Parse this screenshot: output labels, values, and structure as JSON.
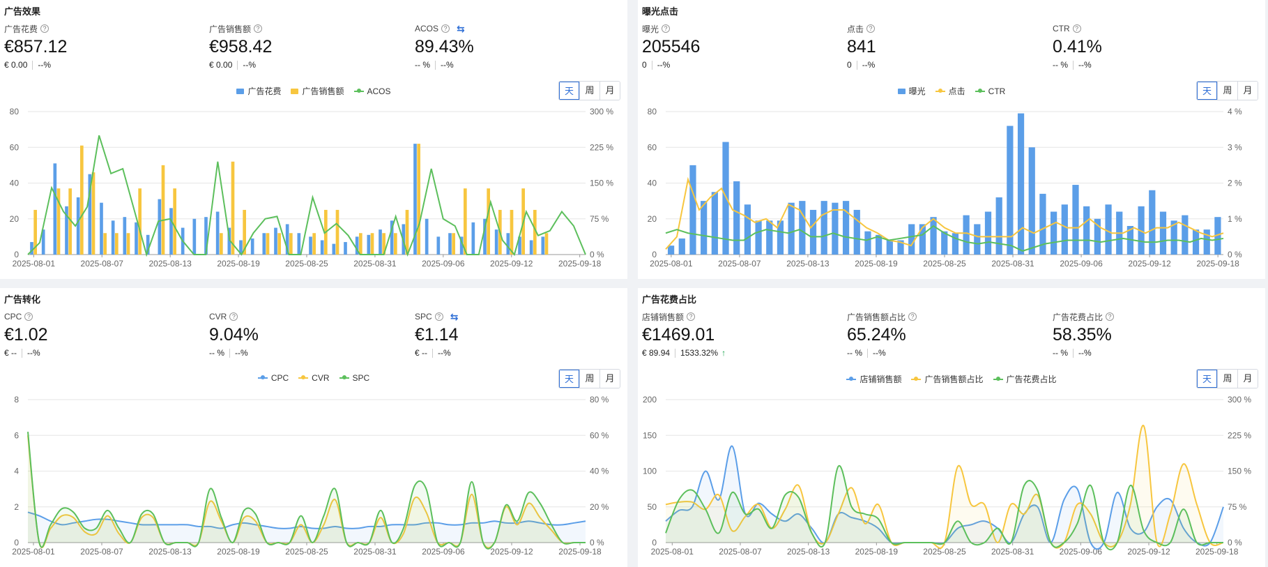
{
  "segment_labels": [
    "天",
    "周",
    "月"
  ],
  "panels": [
    {
      "title": "广告效果",
      "metrics": [
        {
          "label": "广告花费",
          "value": "€857.12",
          "sub1": "€ 0.00",
          "sub2": "--%",
          "help": true,
          "swap": false
        },
        {
          "label": "广告销售额",
          "value": "€958.42",
          "sub1": "€ 0.00",
          "sub2": "--%",
          "help": true,
          "swap": false
        },
        {
          "label": "ACOS",
          "value": "89.43%",
          "sub1": "-- %",
          "sub2": "--%",
          "help": true,
          "swap": true
        }
      ],
      "legend": [
        {
          "name": "广告花费",
          "kind": "bar",
          "color": "#5b9ee8"
        },
        {
          "name": "广告销售额",
          "kind": "bar",
          "color": "#f7c63f"
        },
        {
          "name": "ACOS",
          "kind": "line",
          "color": "#5cbf5c"
        }
      ]
    },
    {
      "title": "曝光点击",
      "metrics": [
        {
          "label": "曝光",
          "value": "205546",
          "sub1": "0",
          "sub2": "--%",
          "help": true,
          "swap": false
        },
        {
          "label": "点击",
          "value": "841",
          "sub1": "0",
          "sub2": "--%",
          "help": true,
          "swap": false
        },
        {
          "label": "CTR",
          "value": "0.41%",
          "sub1": "-- %",
          "sub2": "--%",
          "help": true,
          "swap": false
        }
      ],
      "legend": [
        {
          "name": "曝光",
          "kind": "bar",
          "color": "#5b9ee8"
        },
        {
          "name": "点击",
          "kind": "line",
          "color": "#f7c63f"
        },
        {
          "name": "CTR",
          "kind": "line",
          "color": "#5cbf5c"
        }
      ]
    },
    {
      "title": "广告转化",
      "metrics": [
        {
          "label": "CPC",
          "value": "€1.02",
          "sub1": "€ --",
          "sub2": "--%",
          "help": true,
          "swap": false
        },
        {
          "label": "CVR",
          "value": "9.04%",
          "sub1": "-- %",
          "sub2": "--%",
          "help": true,
          "swap": false
        },
        {
          "label": "SPC",
          "value": "€1.14",
          "sub1": "€ --",
          "sub2": "--%",
          "help": true,
          "swap": true
        }
      ],
      "legend": [
        {
          "name": "CPC",
          "kind": "line",
          "color": "#5b9ee8"
        },
        {
          "name": "CVR",
          "kind": "line",
          "color": "#f7c63f"
        },
        {
          "name": "SPC",
          "kind": "line",
          "color": "#5cbf5c"
        }
      ]
    },
    {
      "title": "广告花费占比",
      "metrics": [
        {
          "label": "店铺销售额",
          "value": "€1469.01",
          "sub1": "€ 89.94",
          "sub2": "1533.32%",
          "help": true,
          "swap": false,
          "up": true
        },
        {
          "label": "广告销售额占比",
          "value": "65.24%",
          "sub1": "-- %",
          "sub2": "--%",
          "help": true,
          "swap": false
        },
        {
          "label": "广告花费占比",
          "value": "58.35%",
          "sub1": "-- %",
          "sub2": "--%",
          "help": true,
          "swap": false
        }
      ],
      "legend": [
        {
          "name": "店铺销售额",
          "kind": "line",
          "color": "#5b9ee8"
        },
        {
          "name": "广告销售额占比",
          "kind": "line",
          "color": "#f7c63f"
        },
        {
          "name": "广告花费占比",
          "kind": "line",
          "color": "#5cbf5c"
        }
      ]
    }
  ],
  "chart_data": [
    {
      "type": "bar",
      "x_ticks": [
        "2025-08-01",
        "2025-08-07",
        "2025-08-13",
        "2025-08-19",
        "2025-08-25",
        "2025-08-31",
        "2025-09-06",
        "2025-09-12",
        "2025-09-18"
      ],
      "y_left_ticks": [
        "0",
        "20",
        "40",
        "60",
        "80"
      ],
      "y_right_ticks": [
        "0 %",
        "75 %",
        "150 %",
        "225 %",
        "300 %"
      ],
      "ylim_left": [
        0,
        80
      ],
      "ylim_right": [
        0,
        300
      ],
      "series": [
        {
          "name": "广告花费",
          "kind": "bar",
          "axis": "left",
          "values": [
            7,
            14,
            51,
            27,
            32,
            45,
            29,
            19,
            21,
            18,
            11,
            31,
            26,
            15,
            20,
            21,
            24,
            15,
            8,
            9,
            12,
            15,
            17,
            12,
            10,
            8,
            6,
            7,
            10,
            11,
            14,
            19,
            17,
            62,
            20,
            10,
            12,
            10,
            18,
            20,
            14,
            12,
            10,
            8,
            10
          ]
        },
        {
          "name": "广告销售额",
          "kind": "bar",
          "axis": "left",
          "values": [
            25,
            0,
            37,
            37,
            61,
            46,
            12,
            12,
            12,
            37,
            0,
            50,
            37,
            0,
            0,
            0,
            12,
            52,
            25,
            0,
            12,
            12,
            12,
            0,
            12,
            25,
            25,
            0,
            12,
            12,
            12,
            12,
            25,
            62,
            0,
            0,
            12,
            37,
            0,
            37,
            25,
            25,
            37,
            25,
            12
          ]
        },
        {
          "name": "ACOS",
          "kind": "line",
          "axis": "right",
          "values": [
            0,
            25,
            140,
            90,
            60,
            100,
            250,
            170,
            180,
            90,
            0,
            70,
            75,
            30,
            0,
            0,
            195,
            30,
            0,
            45,
            75,
            80,
            0,
            0,
            120,
            45,
            65,
            40,
            0,
            0,
            0,
            80,
            0,
            65,
            180,
            75,
            60,
            0,
            0,
            110,
            30,
            0,
            90,
            40,
            50,
            90,
            60,
            0
          ]
        }
      ]
    },
    {
      "type": "bar",
      "x_ticks": [
        "2025-08-01",
        "2025-08-07",
        "2025-08-13",
        "2025-08-19",
        "2025-08-25",
        "2025-08-31",
        "2025-09-06",
        "2025-09-12",
        "2025-09-18"
      ],
      "y_left_ticks": [
        "0",
        "20",
        "40",
        "60",
        "80"
      ],
      "y_right_ticks": [
        "0 %",
        "1 %",
        "2 %",
        "3 %",
        "4 %"
      ],
      "ylim_left": [
        0,
        80
      ],
      "ylim_right": [
        0,
        4
      ],
      "series": [
        {
          "name": "曝光",
          "kind": "bar",
          "axis": "left",
          "values": [
            5,
            9,
            50,
            30,
            35,
            63,
            41,
            28,
            19,
            19,
            19,
            29,
            30,
            25,
            30,
            29,
            30,
            25,
            13,
            11,
            8,
            8,
            17,
            17,
            21,
            13,
            12,
            22,
            17,
            24,
            32,
            72,
            79,
            60,
            34,
            24,
            28,
            39,
            27,
            20,
            28,
            24,
            16,
            27,
            36,
            24,
            19,
            22,
            14,
            14,
            21
          ]
        },
        {
          "name": "点击",
          "kind": "line",
          "axis": "left",
          "values": [
            3,
            10,
            42,
            25,
            32,
            37,
            25,
            22,
            18,
            20,
            15,
            28,
            25,
            15,
            22,
            25,
            25,
            20,
            15,
            12,
            8,
            7,
            5,
            15,
            20,
            15,
            12,
            12,
            10,
            10,
            10,
            10,
            15,
            12,
            15,
            18,
            15,
            15,
            20,
            15,
            12,
            12,
            15,
            12,
            15,
            15,
            18,
            15,
            12,
            10,
            12
          ]
        },
        {
          "name": "CTR",
          "kind": "line",
          "axis": "right",
          "values": [
            0.6,
            0.7,
            0.6,
            0.55,
            0.5,
            0.45,
            0.4,
            0.4,
            0.6,
            0.7,
            0.65,
            0.6,
            0.7,
            0.5,
            0.5,
            0.6,
            0.5,
            0.45,
            0.4,
            0.5,
            0.4,
            0.45,
            0.5,
            0.55,
            0.8,
            0.6,
            0.45,
            0.35,
            0.3,
            0.35,
            0.3,
            0.25,
            0.1,
            0.2,
            0.3,
            0.35,
            0.4,
            0.4,
            0.4,
            0.35,
            0.4,
            0.45,
            0.4,
            0.35,
            0.35,
            0.4,
            0.4,
            0.35,
            0.45,
            0.4,
            0.45
          ]
        }
      ]
    },
    {
      "type": "line",
      "x_ticks": [
        "2025-08-01",
        "2025-08-07",
        "2025-08-13",
        "2025-08-19",
        "2025-08-25",
        "2025-08-31",
        "2025-09-06",
        "2025-09-12",
        "2025-09-18"
      ],
      "y_left_ticks": [
        "0",
        "2",
        "4",
        "6",
        "8"
      ],
      "y_right_ticks": [
        "0 %",
        "20 %",
        "40 %",
        "60 %",
        "80 %"
      ],
      "ylim_left": [
        0,
        8
      ],
      "ylim_right": [
        0,
        80
      ],
      "series": [
        {
          "name": "CPC",
          "kind": "line",
          "axis": "left",
          "values": [
            1.7,
            1.5,
            1.2,
            1.0,
            1.1,
            1.2,
            1.3,
            1.3,
            1.2,
            1.1,
            1.0,
            1.0,
            1.0,
            1.0,
            1.0,
            0.9,
            0.9,
            0.8,
            1.0,
            1.1,
            1.0,
            0.9,
            0.8,
            0.8,
            0.9,
            0.8,
            0.8,
            0.9,
            0.8,
            0.8,
            0.9,
            0.9,
            1.0,
            1.0,
            1.0,
            1.1,
            1.1,
            1.0,
            1.0,
            1.1,
            1.1,
            1.2,
            1.1,
            1.1,
            1.2,
            1.1,
            1.0,
            1.0,
            1.1,
            1.2
          ]
        },
        {
          "name": "CVR",
          "kind": "line",
          "axis": "right",
          "values": [
            60,
            0,
            8,
            15,
            14,
            6,
            5,
            15,
            5,
            0,
            14,
            14,
            0,
            0,
            0,
            0,
            23,
            12,
            0,
            14,
            12,
            0,
            0,
            0,
            10,
            0,
            10,
            24,
            0,
            0,
            0,
            14,
            0,
            5,
            25,
            17,
            0,
            0,
            0,
            27,
            0,
            0,
            20,
            10,
            22,
            14,
            7,
            0,
            0,
            0
          ]
        },
        {
          "name": "SPC",
          "kind": "line",
          "axis": "right",
          "values": [
            62,
            0,
            10,
            19,
            17,
            8,
            8,
            18,
            8,
            0,
            16,
            16,
            0,
            0,
            0,
            0,
            30,
            14,
            0,
            18,
            16,
            0,
            0,
            0,
            15,
            0,
            15,
            30,
            0,
            0,
            0,
            18,
            0,
            8,
            32,
            30,
            0,
            0,
            0,
            34,
            0,
            0,
            21,
            12,
            28,
            22,
            10,
            0,
            0,
            0
          ]
        }
      ]
    },
    {
      "type": "line",
      "x_ticks": [
        "2025-08-01",
        "2025-08-07",
        "2025-08-13",
        "2025-08-19",
        "2025-08-25",
        "2025-08-31",
        "2025-09-06",
        "2025-09-12",
        "2025-09-18"
      ],
      "y_left_ticks": [
        "0",
        "50",
        "100",
        "150",
        "200"
      ],
      "y_right_ticks": [
        "0 %",
        "75 %",
        "150 %",
        "225 %",
        "300 %"
      ],
      "ylim_left": [
        0,
        200
      ],
      "ylim_right": [
        0,
        300
      ],
      "series": [
        {
          "name": "店铺销售额",
          "kind": "line",
          "axis": "left",
          "values": [
            30,
            45,
            50,
            100,
            60,
            135,
            40,
            55,
            40,
            30,
            40,
            20,
            0,
            40,
            35,
            30,
            20,
            0,
            0,
            0,
            0,
            0,
            20,
            25,
            30,
            20,
            0,
            40,
            50,
            0,
            60,
            75,
            0,
            0,
            70,
            20,
            15,
            50,
            60,
            20,
            0,
            0,
            50
          ]
        },
        {
          "name": "广告销售额占比",
          "kind": "line",
          "axis": "right",
          "values": [
            80,
            85,
            85,
            70,
            100,
            25,
            55,
            80,
            30,
            70,
            120,
            20,
            0,
            60,
            115,
            40,
            80,
            0,
            0,
            0,
            0,
            0,
            160,
            80,
            80,
            0,
            80,
            60,
            100,
            0,
            0,
            80,
            60,
            0,
            0,
            80,
            245,
            0,
            60,
            165,
            80,
            0,
            0
          ]
        },
        {
          "name": "广告花费占比",
          "kind": "line",
          "axis": "right",
          "values": [
            20,
            90,
            110,
            70,
            20,
            105,
            60,
            70,
            30,
            100,
            95,
            20,
            0,
            160,
            75,
            60,
            50,
            0,
            0,
            0,
            0,
            0,
            45,
            0,
            0,
            30,
            0,
            120,
            110,
            0,
            0,
            40,
            120,
            0,
            0,
            120,
            25,
            0,
            0,
            70,
            0,
            0,
            0
          ]
        }
      ]
    }
  ]
}
